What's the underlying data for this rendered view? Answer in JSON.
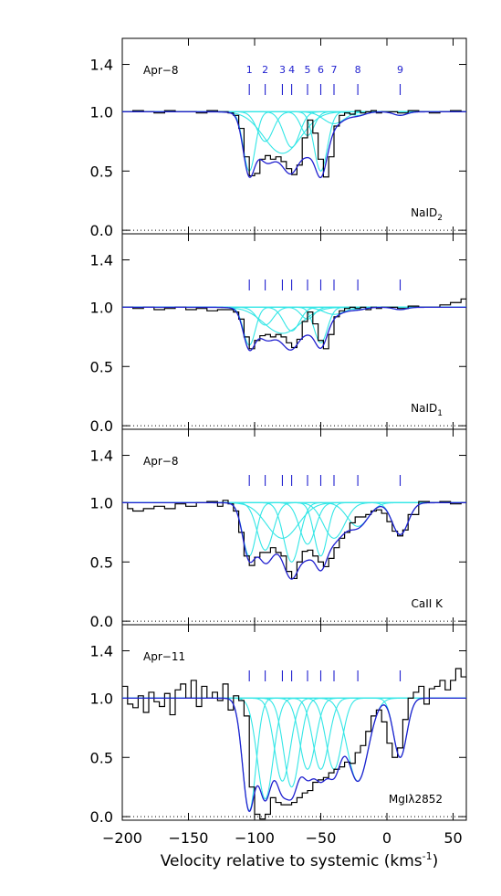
{
  "chart_data": {
    "type": "line",
    "xlabel": "Velocity relative to systemic (kms",
    "xlabel_sup": "-1",
    "xlabel_end": ")",
    "xlim": [
      -200,
      60
    ],
    "ylim": [
      -0.03,
      1.62
    ],
    "x_ticks": [
      -200,
      -150,
      -100,
      -50,
      0,
      50
    ],
    "x_tick_labels": [
      "−200",
      "−150",
      "−100",
      "−50",
      "0",
      "50"
    ],
    "y_ticks": [
      0.0,
      0.5,
      1.0,
      1.4
    ],
    "y_tick_labels": [
      "0.0",
      "0.5",
      "1.0",
      "1.4"
    ],
    "colors": {
      "data": "#000000",
      "fit": "#1f1fcf",
      "component": "#33e6e6",
      "marker": "#1f1fcf"
    },
    "components": {
      "velocities": [
        -104,
        -92,
        -79,
        -72,
        -60,
        -50,
        -40,
        -22,
        10
      ],
      "labels": [
        "1",
        "2",
        "3",
        "4",
        "5",
        "6",
        "7",
        "8",
        "9"
      ]
    },
    "panels": [
      {
        "date": "Apr−8",
        "species": "NaID",
        "species_sub": "2",
        "show_numbers": true,
        "widths": [
          4.5,
          6,
          14,
          6,
          5,
          5,
          8,
          6,
          5
        ],
        "depths": [
          0.5,
          0.25,
          0.35,
          0.3,
          0.2,
          0.5,
          0.1,
          0.03,
          0.03
        ],
        "steps": {
          "x": [
            -200,
            -192,
            -184,
            -176,
            -168,
            -160,
            -152,
            -144,
            -136,
            -128,
            -120,
            -116,
            -112,
            -108,
            -104,
            -100,
            -96,
            -92,
            -88,
            -84,
            -80,
            -76,
            -72,
            -68,
            -64,
            -60,
            -56,
            -52,
            -48,
            -44,
            -40,
            -36,
            -32,
            -28,
            -24,
            -20,
            -16,
            -12,
            -8,
            -4,
            0,
            8,
            16,
            24,
            32,
            40,
            48,
            56
          ],
          "y": [
            1.0,
            1.01,
            1.0,
            0.99,
            1.01,
            1.0,
            1.0,
            0.99,
            1.01,
            1.0,
            0.99,
            0.97,
            0.86,
            0.62,
            0.46,
            0.48,
            0.6,
            0.63,
            0.6,
            0.62,
            0.58,
            0.52,
            0.47,
            0.55,
            0.78,
            0.93,
            0.82,
            0.6,
            0.45,
            0.62,
            0.88,
            0.97,
            0.99,
            0.98,
            1.01,
            0.99,
            1.0,
            1.01,
            0.99,
            1.0,
            1.0,
            0.99,
            1.01,
            1.0,
            0.99,
            1.0,
            1.01,
            1.0
          ]
        }
      },
      {
        "date": "",
        "species": "NaID",
        "species_sub": "1",
        "show_numbers": false,
        "widths": [
          4.5,
          6,
          14,
          6,
          5,
          5,
          8,
          6,
          5
        ],
        "depths": [
          0.32,
          0.15,
          0.22,
          0.2,
          0.1,
          0.3,
          0.06,
          0.02,
          0.02
        ],
        "steps": {
          "x": [
            -200,
            -192,
            -184,
            -176,
            -168,
            -160,
            -152,
            -144,
            -136,
            -128,
            -120,
            -116,
            -112,
            -108,
            -104,
            -100,
            -96,
            -92,
            -88,
            -84,
            -80,
            -76,
            -72,
            -68,
            -64,
            -60,
            -56,
            -52,
            -48,
            -44,
            -40,
            -36,
            -32,
            -28,
            -24,
            -20,
            -16,
            -12,
            -8,
            -4,
            0,
            8,
            16,
            24,
            32,
            40,
            48,
            56
          ],
          "y": [
            1.0,
            0.99,
            1.0,
            0.98,
            0.99,
            1.0,
            0.98,
            0.99,
            0.97,
            0.98,
            0.98,
            0.96,
            0.9,
            0.75,
            0.65,
            0.72,
            0.76,
            0.77,
            0.75,
            0.77,
            0.75,
            0.7,
            0.66,
            0.73,
            0.88,
            0.96,
            0.86,
            0.72,
            0.65,
            0.77,
            0.92,
            0.97,
            0.99,
            1.0,
            0.99,
            1.0,
            0.98,
            1.0,
            0.99,
            1.0,
            1.0,
            0.99,
            1.01,
            1.0,
            1.0,
            1.02,
            1.04,
            1.07
          ]
        }
      },
      {
        "date": "Apr−8",
        "species": "CaII K",
        "species_sub": "",
        "show_numbers": false,
        "widths": [
          5,
          6,
          12,
          6,
          6,
          5,
          8,
          8,
          6
        ],
        "depths": [
          0.45,
          0.4,
          0.3,
          0.5,
          0.35,
          0.45,
          0.3,
          0.2,
          0.27
        ],
        "steps": {
          "x": [
            -200,
            -196,
            -192,
            -184,
            -176,
            -168,
            -160,
            -152,
            -144,
            -136,
            -128,
            -124,
            -120,
            -116,
            -112,
            -108,
            -104,
            -100,
            -96,
            -92,
            -88,
            -84,
            -80,
            -76,
            -72,
            -68,
            -64,
            -60,
            -56,
            -52,
            -48,
            -44,
            -40,
            -36,
            -32,
            -28,
            -24,
            -20,
            -16,
            -12,
            -8,
            -4,
            0,
            4,
            8,
            12,
            16,
            24,
            32,
            40,
            48,
            56
          ],
          "y": [
            1.0,
            0.95,
            0.93,
            0.95,
            0.97,
            0.95,
            0.99,
            0.97,
            1.0,
            1.01,
            0.97,
            1.02,
            0.99,
            0.93,
            0.75,
            0.55,
            0.47,
            0.54,
            0.58,
            0.58,
            0.62,
            0.58,
            0.55,
            0.42,
            0.36,
            0.5,
            0.59,
            0.6,
            0.55,
            0.5,
            0.46,
            0.53,
            0.62,
            0.7,
            0.75,
            0.83,
            0.88,
            0.88,
            0.9,
            0.93,
            0.94,
            0.91,
            0.84,
            0.76,
            0.72,
            0.77,
            0.9,
            1.01,
            1.0,
            1.01,
            0.99,
            1.0
          ]
        }
      },
      {
        "date": "Apr−11",
        "species": "MgIλ2852",
        "species_sub": "",
        "show_numbers": false,
        "widths": [
          5,
          6,
          6,
          6,
          6,
          6,
          6,
          8,
          5
        ],
        "depths": [
          0.95,
          0.85,
          0.7,
          0.75,
          0.6,
          0.6,
          0.6,
          0.7,
          0.5
        ],
        "steps": {
          "x": [
            -200,
            -196,
            -192,
            -188,
            -184,
            -180,
            -176,
            -172,
            -168,
            -164,
            -160,
            -156,
            -152,
            -148,
            -144,
            -140,
            -136,
            -132,
            -128,
            -124,
            -120,
            -116,
            -112,
            -108,
            -104,
            -100,
            -96,
            -92,
            -88,
            -84,
            -80,
            -76,
            -72,
            -68,
            -64,
            -60,
            -56,
            -52,
            -48,
            -44,
            -40,
            -36,
            -32,
            -28,
            -24,
            -20,
            -16,
            -12,
            -8,
            -4,
            0,
            4,
            8,
            12,
            16,
            20,
            24,
            28,
            32,
            36,
            40,
            44,
            48,
            52,
            56
          ],
          "y": [
            1.1,
            0.95,
            0.92,
            1.02,
            0.88,
            1.05,
            0.97,
            0.93,
            1.04,
            0.86,
            1.07,
            1.12,
            1.0,
            1.15,
            0.93,
            1.1,
            1.0,
            1.05,
            0.98,
            1.12,
            0.9,
            1.02,
            0.98,
            0.85,
            0.25,
            0.02,
            -0.02,
            0.02,
            0.16,
            0.12,
            0.1,
            0.1,
            0.12,
            0.16,
            0.2,
            0.22,
            0.29,
            0.31,
            0.33,
            0.37,
            0.4,
            0.42,
            0.46,
            0.45,
            0.54,
            0.6,
            0.72,
            0.85,
            0.9,
            0.8,
            0.62,
            0.5,
            0.58,
            0.82,
            1.0,
            1.05,
            1.1,
            0.95,
            1.08,
            1.1,
            1.15,
            1.07,
            1.15,
            1.25,
            1.18
          ]
        }
      }
    ]
  }
}
